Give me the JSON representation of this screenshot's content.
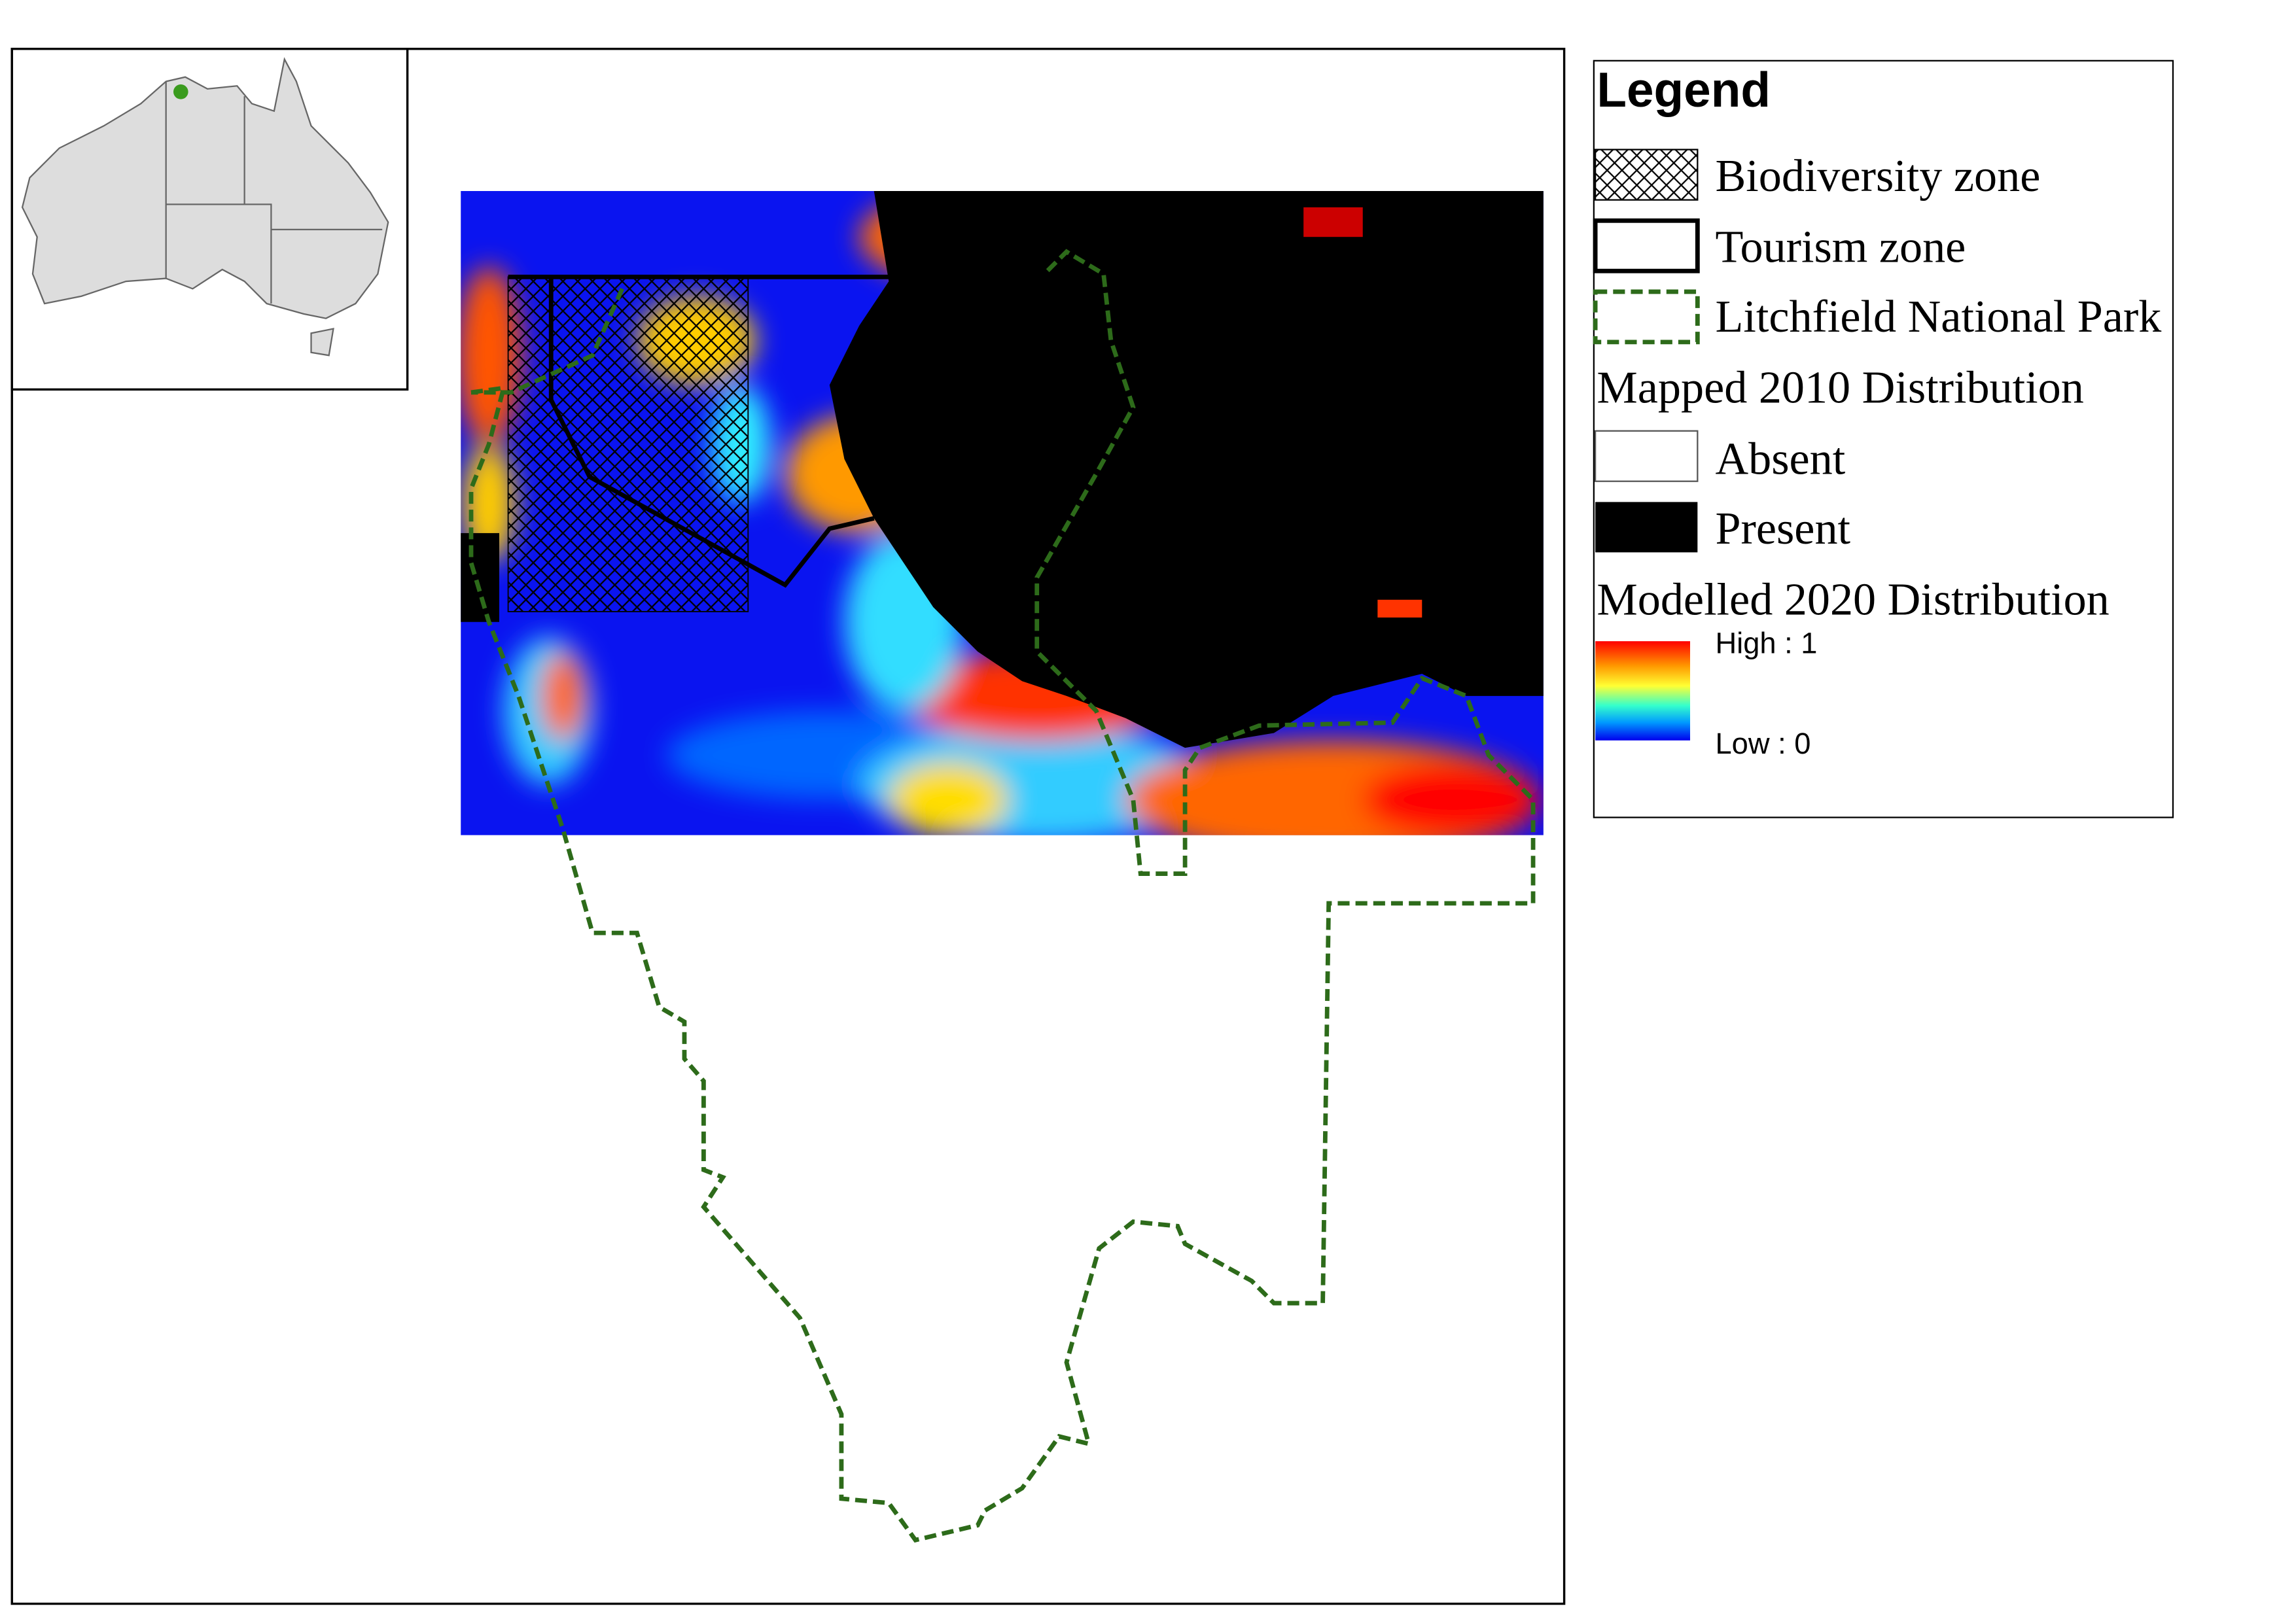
{
  "legend": {
    "title": "Legend",
    "zones": [
      "Biodiversity zone",
      "Tourism zone",
      "Litchfield National Park"
    ],
    "mapped_title": "Mapped 2010 Distribution",
    "mapped_items": [
      "Absent",
      "Present"
    ],
    "modelled_title": "Modelled 2020 Distribution",
    "ramp": {
      "high": "High : 1",
      "low": "Low : 0"
    }
  }
}
